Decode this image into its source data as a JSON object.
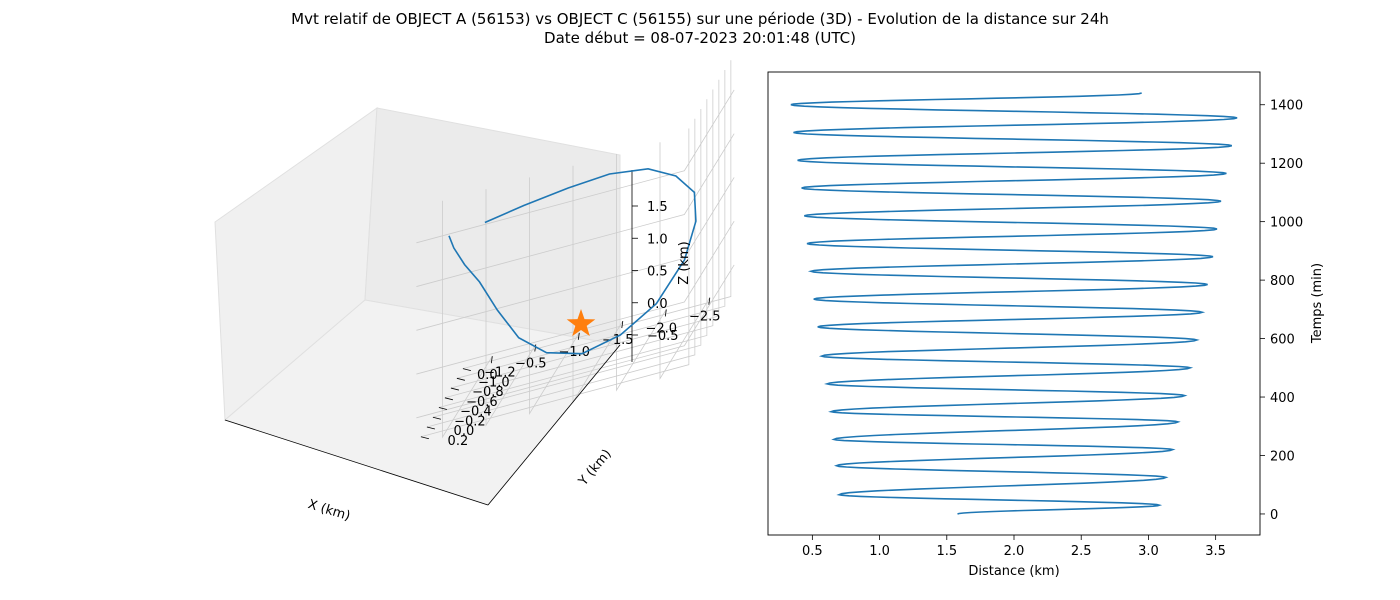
{
  "title_line1": "Mvt relatif de OBJECT A (56153) vs OBJECT C (56155) sur une période (3D) - Evolution de la distance sur 24h",
  "title_line2": "Date début = 08-07-2023 20:01:48 (UTC)",
  "colors": {
    "series": "#1f77b4",
    "marker": "#ff7f0e",
    "pane": "#f2f2f2",
    "grid": "#cccccc"
  },
  "chart_data": [
    {
      "type": "line3d",
      "xlabel": "X (km)",
      "ylabel": "Y (km)",
      "zlabel": "Z (km)",
      "x_ticks": [
        "−2.5",
        "−2.0",
        "−1.5",
        "−1.0",
        "−0.5",
        "0.0"
      ],
      "y_ticks": [
        "−1.2",
        "−1.0",
        "−0.8",
        "−0.6",
        "−0.4",
        "−0.2",
        "0.0",
        "0.2"
      ],
      "z_ticks": [
        "−0.5",
        "0.0",
        "0.5",
        "1.0",
        "1.5"
      ],
      "grid": true,
      "marker": {
        "shape": "star",
        "x": 0.0,
        "y": 0.0,
        "z": 0.0
      },
      "trajectory": [
        [
          -0.03,
          0.22,
          1.42
        ],
        [
          -0.05,
          0.12,
          1.22
        ],
        [
          -0.14,
          0.02,
          0.95
        ],
        [
          -0.27,
          -0.1,
          0.65
        ],
        [
          -0.42,
          -0.26,
          0.2
        ],
        [
          -0.6,
          -0.45,
          -0.27
        ],
        [
          -0.85,
          -0.65,
          -0.62
        ],
        [
          -1.2,
          -0.82,
          -0.82
        ],
        [
          -1.6,
          -0.94,
          -0.78
        ],
        [
          -2.0,
          -0.98,
          -0.55
        ],
        [
          -2.35,
          -0.9,
          -0.1
        ],
        [
          -2.55,
          -0.7,
          0.4
        ],
        [
          -2.62,
          -0.45,
          0.85
        ],
        [
          -2.5,
          -0.18,
          1.22
        ],
        [
          -2.25,
          0.02,
          1.48
        ],
        [
          -1.85,
          0.15,
          1.6
        ],
        [
          -1.4,
          0.22,
          1.6
        ],
        [
          -0.9,
          0.25,
          1.55
        ],
        [
          -0.45,
          0.24,
          1.47
        ]
      ]
    },
    {
      "type": "line",
      "xlabel": "Distance (km)",
      "ylabel": "Temps (min)",
      "xlim": [
        0.17,
        3.83
      ],
      "ylim": [
        -72,
        1512
      ],
      "x_ticks": [
        0.5,
        1.0,
        1.5,
        2.0,
        2.5,
        3.0,
        3.5
      ],
      "y_ticks": [
        0,
        200,
        400,
        600,
        800,
        1000,
        1200,
        1400
      ],
      "grid": false,
      "start_distance": 1.58,
      "end_distance": 2.95,
      "duration_min": 1440,
      "extremes": [
        {
          "t": 0,
          "d": 1.58
        },
        {
          "t": 30,
          "d": 3.08
        },
        {
          "t": 66,
          "d": 0.7
        },
        {
          "t": 125,
          "d": 3.13
        },
        {
          "t": 165,
          "d": 0.68
        },
        {
          "t": 220,
          "d": 3.18
        },
        {
          "t": 255,
          "d": 0.66
        },
        {
          "t": 315,
          "d": 3.22
        },
        {
          "t": 350,
          "d": 0.64
        },
        {
          "t": 405,
          "d": 3.27
        },
        {
          "t": 445,
          "d": 0.61
        },
        {
          "t": 500,
          "d": 3.31
        },
        {
          "t": 540,
          "d": 0.57
        },
        {
          "t": 595,
          "d": 3.36
        },
        {
          "t": 640,
          "d": 0.54
        },
        {
          "t": 690,
          "d": 3.4
        },
        {
          "t": 735,
          "d": 0.51
        },
        {
          "t": 785,
          "d": 3.44
        },
        {
          "t": 830,
          "d": 0.49
        },
        {
          "t": 880,
          "d": 3.48
        },
        {
          "t": 925,
          "d": 0.46
        },
        {
          "t": 975,
          "d": 3.51
        },
        {
          "t": 1020,
          "d": 0.44
        },
        {
          "t": 1070,
          "d": 3.54
        },
        {
          "t": 1115,
          "d": 0.42
        },
        {
          "t": 1165,
          "d": 3.58
        },
        {
          "t": 1210,
          "d": 0.39
        },
        {
          "t": 1260,
          "d": 3.62
        },
        {
          "t": 1305,
          "d": 0.36
        },
        {
          "t": 1355,
          "d": 3.66
        },
        {
          "t": 1400,
          "d": 0.34
        },
        {
          "t": 1440,
          "d": 2.95
        }
      ]
    }
  ]
}
